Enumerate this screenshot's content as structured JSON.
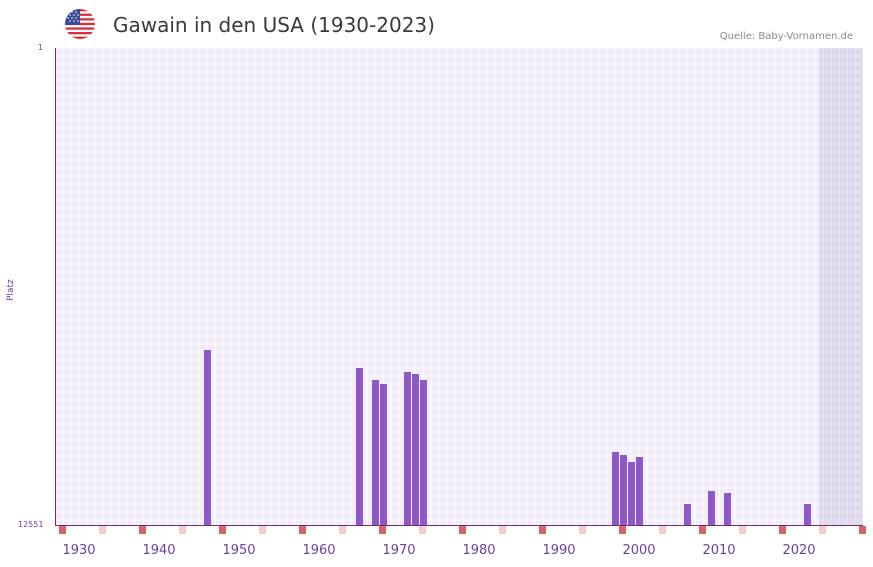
{
  "header": {
    "title": "Gawain in den USA (1930-2023)",
    "flag_icon": "us-flag-icon",
    "source": "Quelle: Baby-Vornamen.de"
  },
  "axes": {
    "y_top_label": "1",
    "y_bottom_label": "12551",
    "y_title": "Platz",
    "x_labels": [
      "1930",
      "1940",
      "1950",
      "1960",
      "1970",
      "1980",
      "1990",
      "2000",
      "2010",
      "2020"
    ]
  },
  "colors": {
    "bar": "#8e58c6",
    "plot_bg": "#f0ecfa",
    "axis": "#7a2a6a",
    "label": "#6b3fa0",
    "tick_major": "#d9646e",
    "tick_minor": "#f3c9cf"
  },
  "chart_data": {
    "type": "bar",
    "title": "Gawain in den USA (1930-2023)",
    "xlabel": "",
    "ylabel": "Platz",
    "ylim": [
      12551,
      1
    ],
    "y_inverted": true,
    "x_range": [
      1928,
      2028
    ],
    "shaded_region_from": 2023,
    "grid": true,
    "categories": [
      1946,
      1965,
      1967,
      1968,
      1971,
      1972,
      1973,
      1997,
      1998,
      1999,
      2000,
      2006,
      2009,
      2011,
      2021
    ],
    "values": [
      7950,
      8420,
      8740,
      8840,
      8530,
      8580,
      8740,
      10640,
      10720,
      10900,
      10770,
      11990,
      11650,
      11720,
      12010
    ]
  }
}
